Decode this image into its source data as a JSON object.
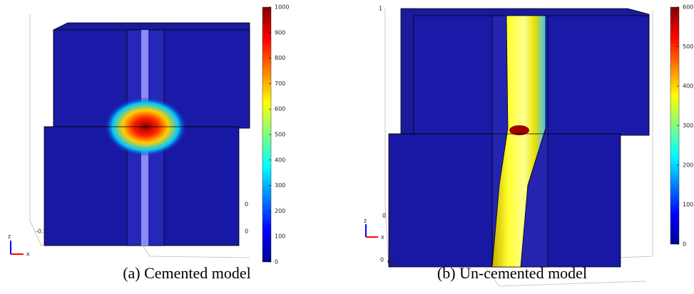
{
  "panels": [
    {
      "caption": "(a) Cemented model",
      "colorbar": {
        "ticks": [
          0,
          100,
          200,
          300,
          400,
          500,
          600,
          700,
          800,
          900,
          1000
        ]
      },
      "axis_labels": [
        "-0.5",
        "0",
        "0",
        "z",
        "x"
      ]
    },
    {
      "caption": "(b) Un-cemented model",
      "colorbar": {
        "ticks": [
          0,
          100,
          200,
          300,
          400,
          500,
          600
        ]
      },
      "axis_labels": [
        "1",
        "0",
        "0",
        "0.5",
        "z",
        "x"
      ]
    }
  ]
}
